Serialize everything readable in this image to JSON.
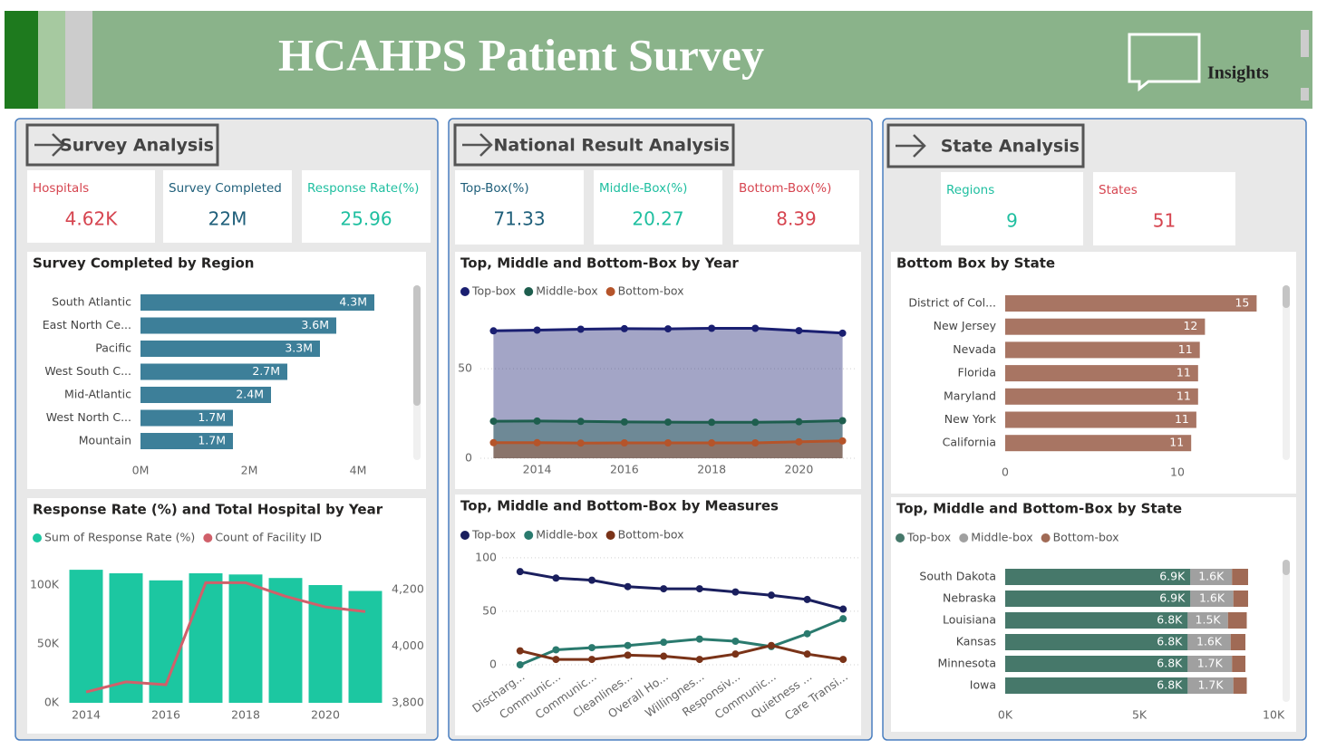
{
  "header": {
    "title": "HCAHPS Patient Survey",
    "insights": "Insights"
  },
  "panels": [
    {
      "title": "Survey Analysis",
      "kpis": [
        {
          "label": "Hospitals",
          "value": "4.62K"
        },
        {
          "label": "Survey Completed",
          "value": "22M"
        },
        {
          "label": "Response Rate(%)",
          "value": 25.96
        }
      ]
    },
    {
      "title": "National Result Analysis",
      "kpis": [
        {
          "label": "Top-Box(%)",
          "value": 71.33
        },
        {
          "label": "Middle-Box(%)",
          "value": 20.27
        },
        {
          "label": "Bottom-Box(%)",
          "value": 8.39
        }
      ]
    },
    {
      "title": "State Analysis",
      "kpis": [
        {
          "label": "Regions",
          "value": 9
        },
        {
          "label": "States",
          "value": 51
        }
      ]
    }
  ],
  "chart_data": [
    {
      "type": "hbar",
      "title": "Survey Completed by Region",
      "categories": [
        "South Atlantic",
        "East North Ce...",
        "Pacific",
        "West South C...",
        "Mid-Atlantic",
        "West North C...",
        "Mountain"
      ],
      "values": [
        4300000,
        3600000,
        3300000,
        2700000,
        2400000,
        1700000,
        1700000
      ],
      "value_labels": [
        "4.3M",
        "3.6M",
        "3.3M",
        "2.7M",
        "2.4M",
        "1.7M",
        "1.7M"
      ],
      "color": "#3d7f99",
      "xlim": [
        0,
        4900000
      ],
      "xticks": [
        {
          "value": 0,
          "label": "0M"
        },
        {
          "value": 2000000,
          "label": "2M"
        },
        {
          "value": 4000000,
          "label": "4M"
        }
      ]
    },
    {
      "type": "combo",
      "title": "Response Rate (%) and Total Hospital by Year",
      "x": [
        2014,
        2015,
        2016,
        2017,
        2018,
        2019,
        2020,
        2021
      ],
      "xlim": [
        2013.5,
        2021.5
      ],
      "xticks": [
        2014,
        2016,
        2018,
        2020
      ],
      "series": [
        {
          "name": "Sum of Response Rate (%)",
          "type": "bar",
          "color": "#1cc7a1",
          "values": [
            113000,
            110000,
            104000,
            110000,
            109000,
            106000,
            100000,
            95000
          ]
        },
        {
          "name": "Count of Facility ID",
          "type": "line",
          "axis": "y2",
          "color": "#d0606a",
          "values": [
            3838,
            3874,
            3864,
            4225,
            4225,
            4177,
            4139,
            4123
          ]
        }
      ],
      "ylim": [
        0,
        120000
      ],
      "yticks": [
        {
          "value": 0,
          "label": "0K"
        },
        {
          "value": 50000,
          "label": "50K"
        },
        {
          "value": 100000,
          "label": "100K"
        }
      ],
      "y2lim": [
        3800,
        4300
      ],
      "y2ticks": [
        {
          "value": 3800,
          "label": "3,800"
        },
        {
          "value": 4000,
          "label": "4,000"
        },
        {
          "value": 4200,
          "label": "4,200"
        }
      ]
    },
    {
      "type": "area",
      "title": "Top, Middle and Bottom-Box by Year",
      "x": [
        2013,
        2014,
        2015,
        2016,
        2017,
        2018,
        2019,
        2020,
        2021
      ],
      "xlim": [
        2012.7,
        2021.3
      ],
      "xticks": [
        2014,
        2016,
        2018,
        2020
      ],
      "series": [
        {
          "name": "Top-box",
          "color": "#1a1f71",
          "values": [
            71.2,
            71.6,
            72.1,
            72.4,
            72.3,
            72.6,
            72.6,
            71.3,
            69.9
          ]
        },
        {
          "name": "Middle-box",
          "color": "#1e5e4e",
          "values": [
            20.7,
            20.8,
            20.6,
            20.3,
            20.2,
            20.1,
            20.1,
            20.4,
            21.0
          ]
        },
        {
          "name": "Bottom-box",
          "color": "#b5542a",
          "values": [
            8.7,
            8.7,
            8.5,
            8.6,
            8.6,
            8.6,
            8.6,
            9.2,
            9.7
          ]
        }
      ],
      "ylim": [
        0,
        85
      ],
      "yticks": [
        0,
        50
      ],
      "grid": true
    },
    {
      "type": "line",
      "title": "Top, Middle and Bottom-Box by Measures",
      "categories": [
        "Discharg...",
        "Communic...",
        "Communic...",
        "Cleanlines...",
        "Overall Ho...",
        "Willingnes...",
        "Responsiv...",
        "Communic...",
        "Quietness ...",
        "Care Transi..."
      ],
      "series": [
        {
          "name": "Top-box",
          "color": "#1a1f5e",
          "values": [
            87,
            81,
            79,
            73,
            71,
            71,
            68,
            65,
            61,
            52
          ]
        },
        {
          "name": "Middle-box",
          "color": "#2a7a6e",
          "values": [
            0,
            14,
            16,
            18,
            21,
            24,
            22,
            17,
            29,
            43
          ]
        },
        {
          "name": "Bottom-box",
          "color": "#7a3318",
          "values": [
            13,
            5,
            5,
            9,
            8,
            5,
            10,
            18,
            10,
            5
          ]
        }
      ],
      "ylim": [
        0,
        110
      ],
      "yticks": [
        0,
        50,
        100
      ],
      "grid": true
    },
    {
      "type": "hbar",
      "title": "Bottom Box by State",
      "categories": [
        "District of Col...",
        "New Jersey",
        "Nevada",
        "Florida",
        "Maryland",
        "New York",
        "California"
      ],
      "values": [
        14.6,
        11.6,
        11.3,
        11.2,
        11.2,
        11.1,
        10.8
      ],
      "value_labels": [
        "15",
        "12",
        "11",
        "11",
        "11",
        "11",
        "11"
      ],
      "color": "#a87563",
      "xlim": [
        0,
        16
      ],
      "xticks": [
        0,
        10
      ]
    },
    {
      "type": "stacked_hbar",
      "title": "Top, Middle and Bottom-Box by State",
      "categories": [
        "South Dakota",
        "Nebraska",
        "Louisiana",
        "Kansas",
        "Minnesota",
        "Iowa"
      ],
      "series": [
        {
          "name": "Top-box",
          "color": "#46786a",
          "values": [
            6900,
            6900,
            6800,
            6800,
            6800,
            6800
          ],
          "value_labels": [
            "6.9K",
            "6.9K",
            "6.8K",
            "6.8K",
            "6.8K",
            "6.8K"
          ]
        },
        {
          "name": "Middle-box",
          "color": "#a0a0a0",
          "values": [
            1550,
            1600,
            1500,
            1600,
            1650,
            1700
          ],
          "value_labels": [
            "1.6K",
            "1.6K",
            "1.5K",
            "1.6K",
            "1.7K",
            "1.7K"
          ]
        },
        {
          "name": "Bottom-box",
          "color": "#a06a55",
          "values": [
            600,
            550,
            700,
            550,
            500,
            500
          ]
        }
      ],
      "xlim": [
        0,
        10300
      ],
      "xticks": [
        {
          "value": 0,
          "label": "0K"
        },
        {
          "value": 5000,
          "label": "5K"
        },
        {
          "value": 10000,
          "label": "10K"
        }
      ]
    }
  ]
}
